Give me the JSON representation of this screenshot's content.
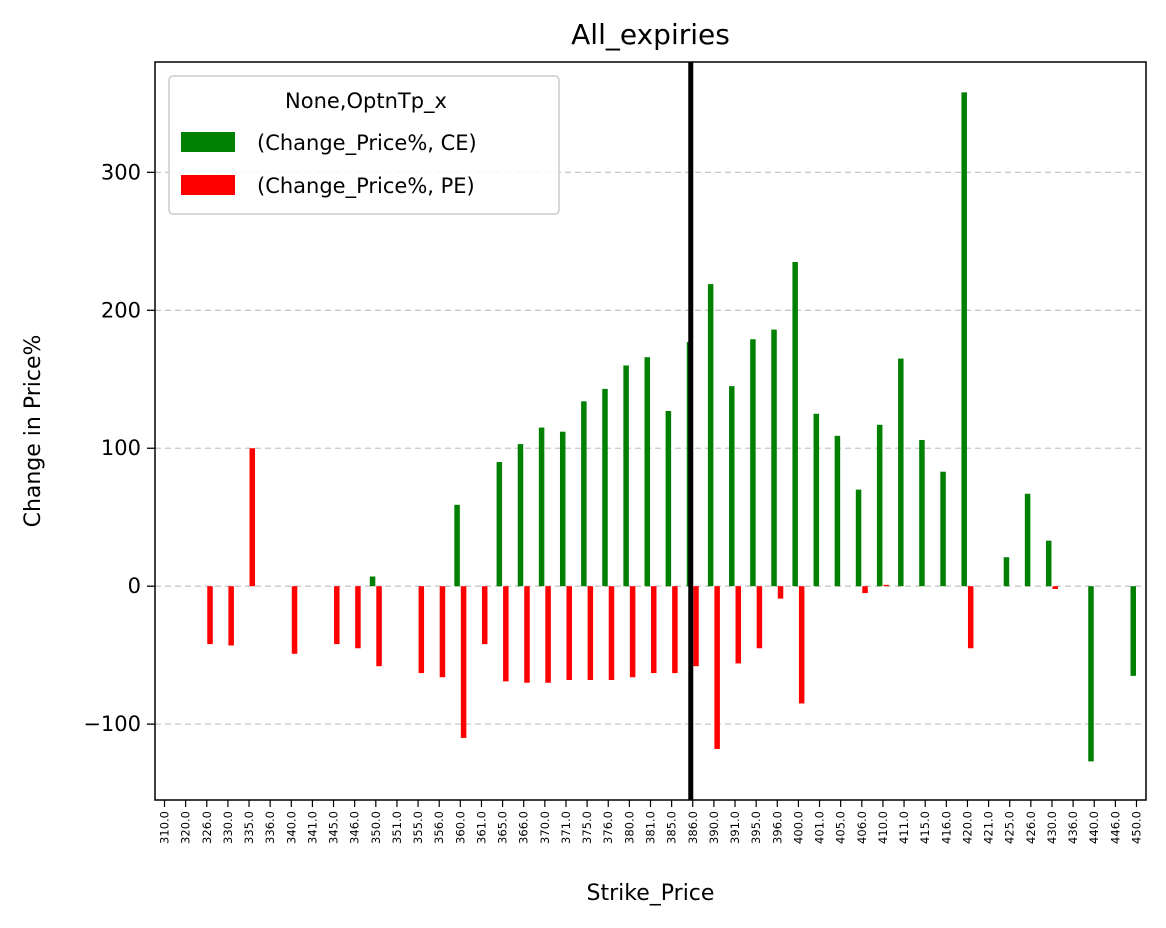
{
  "chart_data": {
    "type": "bar",
    "title": "All_expiries",
    "xlabel": "Strike_Price",
    "ylabel": "Change in Price%",
    "ylim": [
      -155,
      380
    ],
    "yticks": [
      -100,
      0,
      100,
      200,
      300
    ],
    "ytick_labels": [
      "−100",
      "0",
      "100",
      "200",
      "300"
    ],
    "grid": "horizontal dashed",
    "legend_position": "top-left",
    "legend_title": "None,OptnTp_x",
    "vertical_marker": {
      "category": "386.0",
      "color": "#000000"
    },
    "categories": [
      "310.0",
      "320.0",
      "326.0",
      "330.0",
      "335.0",
      "336.0",
      "340.0",
      "341.0",
      "345.0",
      "346.0",
      "350.0",
      "351.0",
      "355.0",
      "356.0",
      "360.0",
      "361.0",
      "365.0",
      "366.0",
      "370.0",
      "371.0",
      "375.0",
      "376.0",
      "380.0",
      "381.0",
      "385.0",
      "386.0",
      "390.0",
      "391.0",
      "395.0",
      "396.0",
      "400.0",
      "401.0",
      "405.0",
      "406.0",
      "410.0",
      "411.0",
      "415.0",
      "416.0",
      "420.0",
      "421.0",
      "425.0",
      "426.0",
      "430.0",
      "436.0",
      "440.0",
      "446.0",
      "450.0"
    ],
    "series": [
      {
        "name": "(Change_Price%, CE)",
        "color": "#008000",
        "values": [
          null,
          null,
          null,
          null,
          null,
          null,
          null,
          null,
          null,
          null,
          7,
          null,
          null,
          null,
          59,
          null,
          90,
          103,
          115,
          112,
          134,
          143,
          160,
          166,
          127,
          177,
          219,
          145,
          179,
          186,
          235,
          125,
          109,
          70,
          117,
          165,
          106,
          83,
          358,
          null,
          21,
          67,
          33,
          null,
          -127,
          null,
          -65
        ]
      },
      {
        "name": "(Change_Price%, PE)",
        "color": "#ff0000",
        "values": [
          null,
          null,
          -42,
          -43,
          100,
          null,
          -49,
          null,
          -42,
          -45,
          -58,
          null,
          -63,
          -66,
          -110,
          -42,
          -69,
          -70,
          -70,
          -68,
          -68,
          -68,
          -66,
          -63,
          -63,
          -58,
          -118,
          -56,
          -45,
          -9,
          -85,
          null,
          null,
          -5,
          1,
          null,
          null,
          null,
          -45,
          null,
          null,
          null,
          -2,
          null,
          null,
          null,
          null
        ]
      }
    ]
  }
}
